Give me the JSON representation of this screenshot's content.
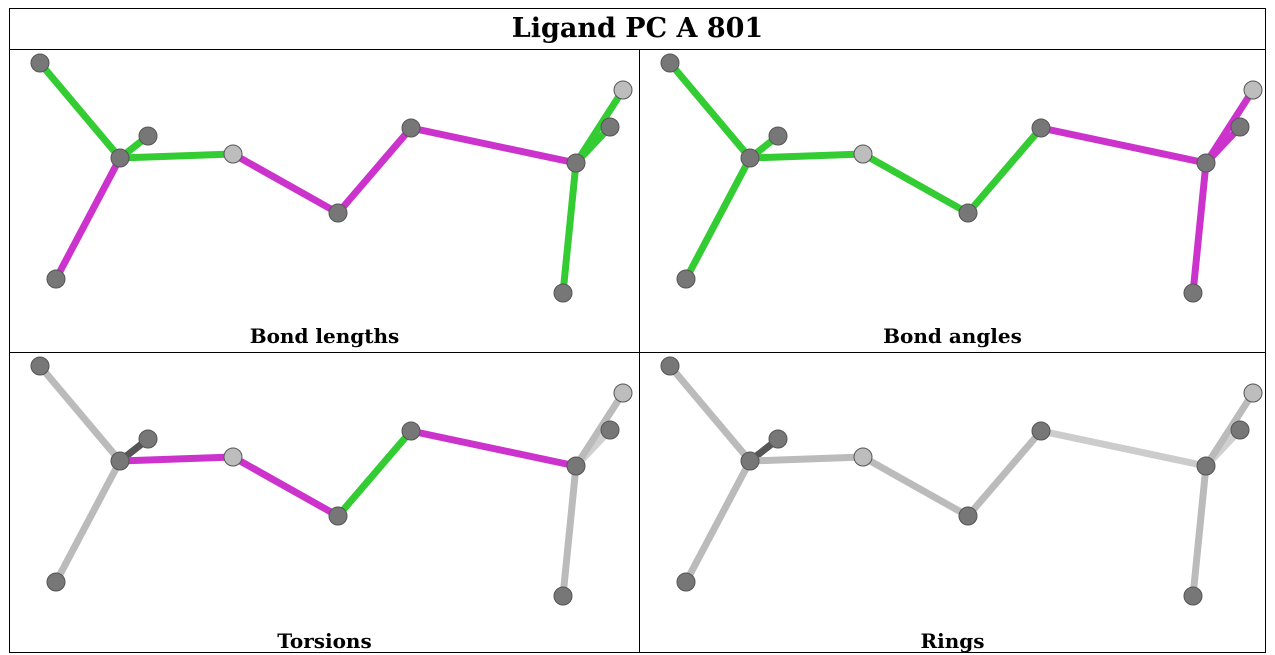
{
  "title": "Ligand PC A 801",
  "panels": [
    {
      "caption": "Bond lengths",
      "bond_colors": [
        "#33cc33",
        "#cc33cc",
        "#33cc33",
        "#33cc33",
        "#cc33cc",
        "#cc33cc",
        "#cc33cc",
        "#33cc33",
        "#33cc33",
        "#33cc33",
        "#1f6f1f"
      ]
    },
    {
      "caption": "Bond angles",
      "bond_colors": [
        "#33cc33",
        "#33cc33",
        "#33cc33",
        "#33cc33",
        "#33cc33",
        "#33cc33",
        "#cc33cc",
        "#cc33cc",
        "#cc33cc",
        "#cc33cc",
        "#7a1f7a"
      ]
    },
    {
      "caption": "Torsions",
      "bond_colors": [
        "#bbbbbb",
        "#bbbbbb",
        "#555555",
        "#cc33cc",
        "#cc33cc",
        "#33cc33",
        "#cc33cc",
        "#bbbbbb",
        "#d0d0d0",
        "#bbbbbb",
        "#555555"
      ]
    },
    {
      "caption": "Rings",
      "bond_colors": [
        "#bbbbbb",
        "#bbbbbb",
        "#555555",
        "#bbbbbb",
        "#bbbbbb",
        "#bbbbbb",
        "#cccccc",
        "#bbbbbb",
        "#d0d0d0",
        "#bbbbbb",
        "#555555"
      ]
    }
  ],
  "colors": {
    "atom": "#777777",
    "atom_highlight": "#bdbdbd",
    "border": "#000000"
  }
}
